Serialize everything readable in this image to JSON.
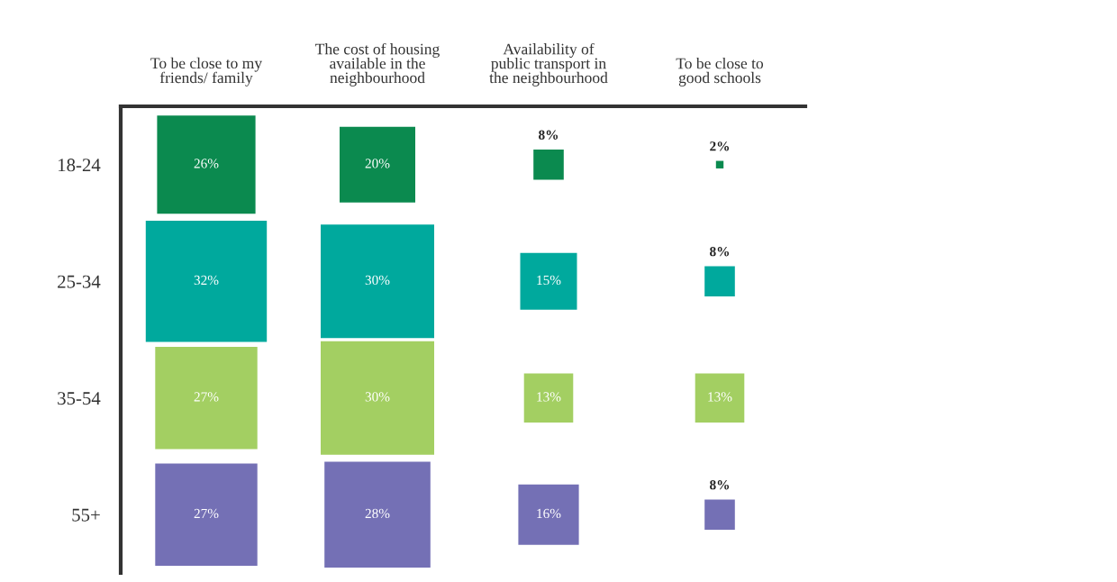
{
  "chart_data": {
    "type": "heatmap",
    "categories": [
      "To be close to my\nfriends/ family",
      "The cost of housing\navailable in the\nneighbourhood",
      "Availability of\npublic transport in\nthe neighbourhood",
      "To be close to\ngood schools"
    ],
    "y_categories": [
      "18-24",
      "25-34",
      "35-54",
      "55+"
    ],
    "cells": [
      [
        26,
        20,
        8,
        2
      ],
      [
        32,
        30,
        15,
        8
      ],
      [
        27,
        30,
        13,
        13
      ],
      [
        27,
        28,
        16,
        8
      ]
    ],
    "cell_labels": [
      [
        "26%",
        "20%",
        "8%",
        "2%"
      ],
      [
        "32%",
        "30%",
        "15%",
        "8%"
      ],
      [
        "27%",
        "30%",
        "13%",
        "13%"
      ],
      [
        "27%",
        "28%",
        "16%",
        "8%"
      ]
    ],
    "colors": [
      "#0b8a4f",
      "#00a99d",
      "#a3cf62",
      "#7470b5"
    ],
    "data_labels": true
  }
}
